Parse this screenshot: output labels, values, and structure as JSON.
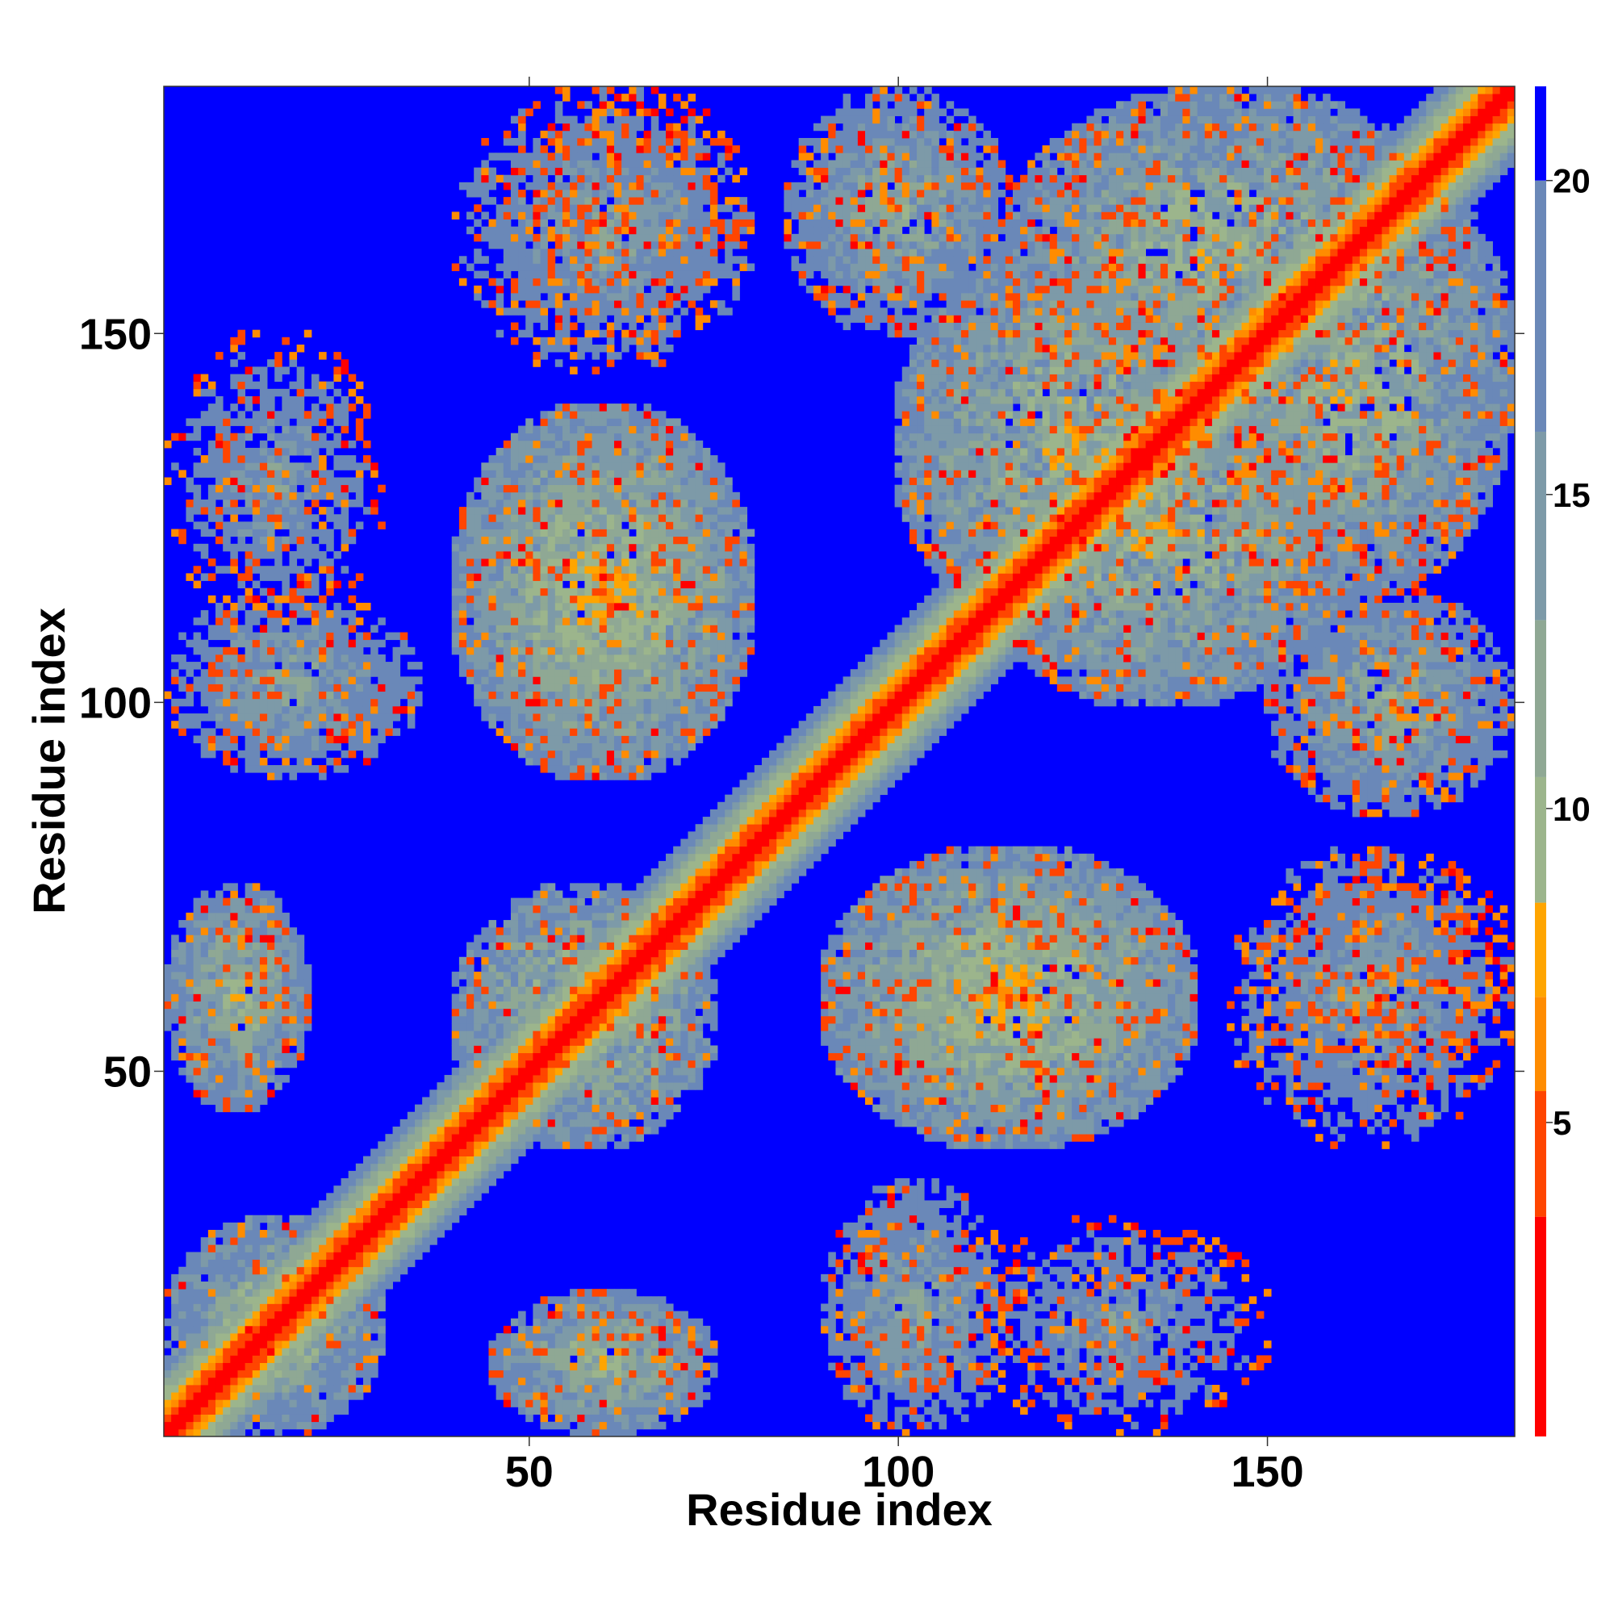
{
  "chart_data": {
    "type": "heatmap",
    "title": "",
    "xlabel": "Residue index",
    "ylabel": "Residue index",
    "n_residues": 183,
    "x_ticks": [
      50,
      100,
      150
    ],
    "y_ticks": [
      50,
      100,
      150
    ],
    "x_tick_labels": [
      "50",
      "100",
      "150"
    ],
    "y_tick_labels": [
      "50",
      "100",
      "150"
    ],
    "xlim": [
      1,
      183
    ],
    "ylim": [
      1,
      183
    ],
    "color_scale": {
      "min": 0,
      "max": 21.5,
      "ticks": [
        5,
        10,
        15,
        20
      ],
      "tick_labels": [
        "5",
        "10",
        "15",
        "20"
      ],
      "bands": [
        {
          "upto": 3.5,
          "color": "#ff0000"
        },
        {
          "upto": 5.5,
          "color": "#ff4500"
        },
        {
          "upto": 7.0,
          "color": "#ff8c00"
        },
        {
          "upto": 8.5,
          "color": "#ffa500"
        },
        {
          "upto": 10.5,
          "color": "#9cb58c"
        },
        {
          "upto": 13.0,
          "color": "#8fa894"
        },
        {
          "upto": 16.0,
          "color": "#7d9aa8"
        },
        {
          "upto": 20.0,
          "color": "#6a88b8"
        },
        {
          "upto": 99,
          "color": "#0000ff"
        }
      ]
    },
    "contact_blocks": [
      {
        "x": [
          1,
          30
        ],
        "y": [
          1,
          30
        ],
        "peak": 9.5
      },
      {
        "x": [
          40,
          80
        ],
        "y": [
          90,
          140
        ],
        "peak": 9.0
      },
      {
        "x": [
          90,
          140
        ],
        "y": [
          40,
          80
        ],
        "peak": 9.0
      },
      {
        "x": [
          100,
          145
        ],
        "y": [
          110,
          160
        ],
        "peak": 9.5
      },
      {
        "x": [
          110,
          160
        ],
        "y": [
          100,
          145
        ],
        "peak": 9.5
      },
      {
        "x": [
          115,
          175
        ],
        "y": [
          140,
          183
        ],
        "peak": 10.0
      },
      {
        "x": [
          140,
          183
        ],
        "y": [
          115,
          175
        ],
        "peak": 10.0
      },
      {
        "x": [
          1,
          20
        ],
        "y": [
          45,
          75
        ],
        "peak": 10.5
      },
      {
        "x": [
          45,
          75
        ],
        "y": [
          1,
          20
        ],
        "peak": 10.5
      },
      {
        "x": [
          40,
          75
        ],
        "y": [
          40,
          75
        ],
        "peak": 9.0
      },
      {
        "x": [
          85,
          115
        ],
        "y": [
          150,
          183
        ],
        "peak": 12.0
      },
      {
        "x": [
          150,
          183
        ],
        "y": [
          85,
          115
        ],
        "peak": 12.0
      },
      {
        "x": [
          1,
          35
        ],
        "y": [
          90,
          115
        ],
        "peak": 13.0
      },
      {
        "x": [
          90,
          115
        ],
        "y": [
          1,
          35
        ],
        "peak": 13.0
      },
      {
        "x": [
          40,
          80
        ],
        "y": [
          145,
          183
        ],
        "peak": 14.0
      },
      {
        "x": [
          145,
          183
        ],
        "y": [
          40,
          80
        ],
        "peak": 14.0
      },
      {
        "x": [
          110,
          150
        ],
        "y": [
          1,
          30
        ],
        "peak": 15.0
      },
      {
        "x": [
          1,
          30
        ],
        "y": [
          110,
          150
        ],
        "peak": 15.0
      },
      {
        "x": [
          150,
          183
        ],
        "y": [
          50,
          80
        ],
        "peak": 15.5
      },
      {
        "x": [
          50,
          80
        ],
        "y": [
          150,
          183
        ],
        "peak": 15.5
      }
    ]
  }
}
